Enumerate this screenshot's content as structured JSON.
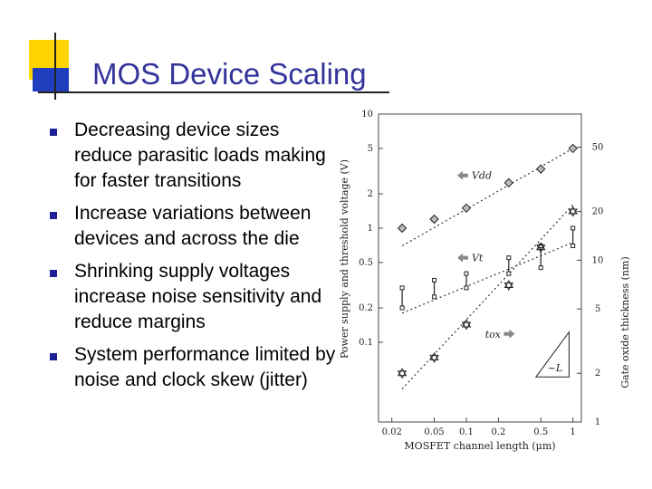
{
  "slide": {
    "title": "MOS Device Scaling",
    "bullets": [
      "Decreasing device sizes reduce parasitic loads making for faster transitions",
      "Increase variations between devices and across the die",
      "Shrinking supply voltages increase noise sensitivity and reduce margins",
      "System performance limited by noise and clock skew (jitter)"
    ]
  },
  "colors": {
    "title": "#33339a",
    "bullet_marker": "#1f1f9a",
    "deco_yellow": "#ffd400",
    "deco_blue": "#1f3fbf"
  },
  "chart_data": {
    "type": "scatter",
    "xlabel": "MOSFET channel length (μm)",
    "ylabel": "Power supply and threshold voltage (V)",
    "y2label": "Gate oxide thickness (nm)",
    "x_scale": "log",
    "y_scale": "log",
    "y2_scale": "log",
    "xlim": [
      0.015,
      1.2
    ],
    "ylim": [
      0.02,
      10
    ],
    "y2lim": [
      1,
      80
    ],
    "x_ticks": [
      "0.02",
      "0.05",
      "0.1",
      "0.2",
      "0.5",
      "1"
    ],
    "x_tick_values": [
      0.02,
      0.05,
      0.1,
      0.2,
      0.5,
      1
    ],
    "y_ticks": [
      "10",
      "5",
      "2",
      "1",
      "0.5",
      "0.2",
      "0.1"
    ],
    "y_tick_values": [
      10,
      5,
      2,
      1,
      0.5,
      0.2,
      0.1
    ],
    "y2_ticks": [
      "50",
      "20",
      "10",
      "5",
      "2",
      "1"
    ],
    "y2_tick_values": [
      50,
      20,
      10,
      5,
      2,
      1
    ],
    "series": [
      {
        "name": "Vdd",
        "axis": "left",
        "marker": "diamond",
        "x": [
          0.025,
          0.05,
          0.1,
          0.25,
          0.5,
          1
        ],
        "y": [
          1,
          1.2,
          1.5,
          2.5,
          3.3,
          5
        ],
        "trend": {
          "x": [
            0.025,
            1
          ],
          "y": [
            0.7,
            5
          ]
        }
      },
      {
        "name": "Vt",
        "axis": "left",
        "marker": "errorbar",
        "x": [
          0.025,
          0.05,
          0.1,
          0.25,
          0.5,
          1
        ],
        "low": [
          0.2,
          0.25,
          0.3,
          0.4,
          0.45,
          0.7
        ],
        "high": [
          0.3,
          0.35,
          0.4,
          0.55,
          0.7,
          1
        ],
        "trend": {
          "x": [
            0.025,
            1
          ],
          "y": [
            0.18,
            0.75
          ]
        }
      },
      {
        "name": "tox",
        "axis": "right",
        "marker": "star",
        "x": [
          0.025,
          0.05,
          0.1,
          0.25,
          0.5,
          1
        ],
        "y": [
          2,
          2.5,
          4,
          7,
          12,
          20
        ],
        "trend": {
          "x": [
            0.025,
            1
          ],
          "y": [
            1.6,
            22
          ]
        }
      }
    ],
    "annotations": {
      "vdd_label": "Vdd",
      "vt_label": "Vt",
      "tox_label": "tox",
      "scaling_label": "~L"
    },
    "grid": false
  }
}
